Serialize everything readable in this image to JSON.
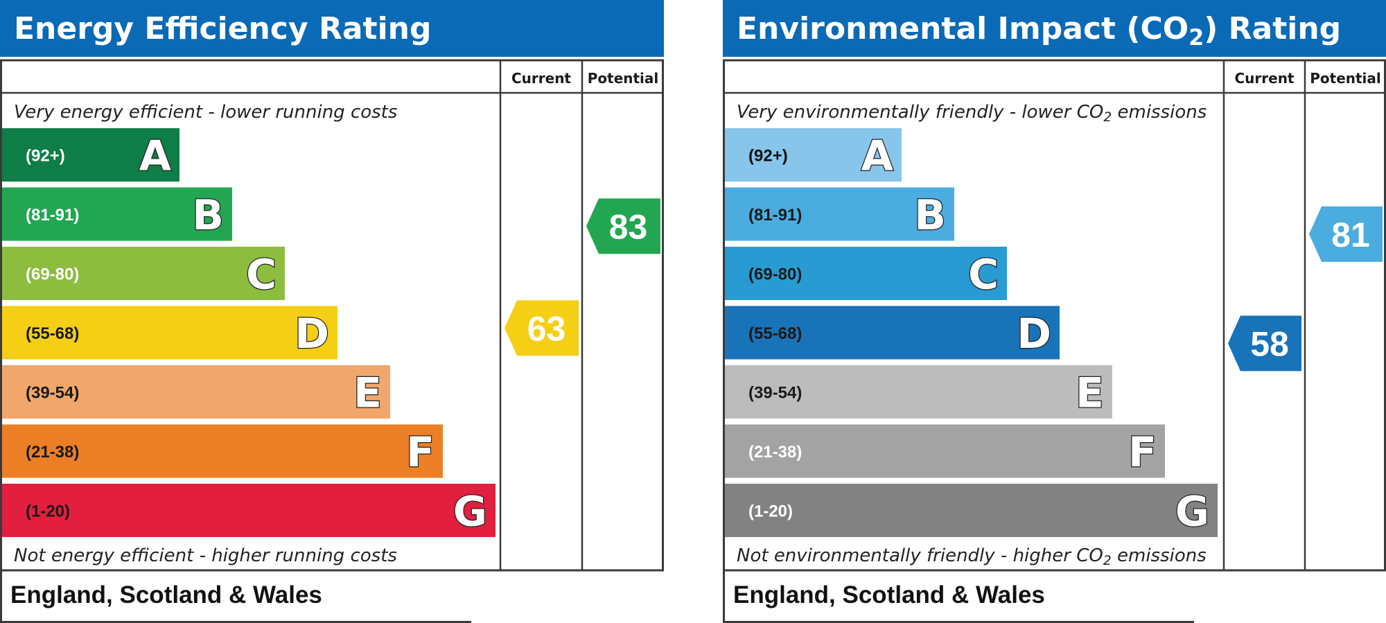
{
  "chart_data": [
    {
      "type": "bar",
      "title": "Energy Efficiency Rating",
      "title_suffix": "",
      "columns": [
        "Current",
        "Potential"
      ],
      "top_note": "Very energy efficient - lower running costs",
      "top_note_suffix": "",
      "bottom_note": "Not energy efficient - higher running costs",
      "bottom_note_suffix": "",
      "footer": "England, Scotland & Wales",
      "bands": [
        {
          "letter": "A",
          "range": "(92+)",
          "min": 92,
          "max": 100,
          "color": "#0f7d47",
          "text_color": "#ffffff"
        },
        {
          "letter": "B",
          "range": "(81-91)",
          "min": 81,
          "max": 91,
          "color": "#22a652",
          "text_color": "#ffffff"
        },
        {
          "letter": "C",
          "range": "(69-80)",
          "min": 69,
          "max": 80,
          "color": "#8dbd3f",
          "text_color": "#ffffff"
        },
        {
          "letter": "D",
          "range": "(55-68)",
          "min": 55,
          "max": 68,
          "color": "#f5cf16",
          "text_color": "#1a1a1a"
        },
        {
          "letter": "E",
          "range": "(39-54)",
          "min": 39,
          "max": 54,
          "color": "#f1a76b",
          "text_color": "#1a1a1a"
        },
        {
          "letter": "F",
          "range": "(21-38)",
          "min": 21,
          "max": 38,
          "color": "#ec7f26",
          "text_color": "#1a1a1a"
        },
        {
          "letter": "G",
          "range": "(1-20)",
          "min": 1,
          "max": 20,
          "color": "#e21f3f",
          "text_color": "#1a1a1a"
        }
      ],
      "current": {
        "value": 63,
        "band": "D",
        "color": "#f5cf16"
      },
      "potential": {
        "value": 83,
        "band": "B",
        "color": "#22a652"
      }
    },
    {
      "type": "bar",
      "title": "Environmental Impact (CO",
      "title_sub": "2",
      "title_suffix": ") Rating",
      "columns": [
        "Current",
        "Potential"
      ],
      "top_note": "Very environmentally friendly - lower CO",
      "top_note_sub": "2",
      "top_note_suffix": " emissions",
      "bottom_note": "Not environmentally friendly - higher CO",
      "bottom_note_sub": "2",
      "bottom_note_suffix": " emissions",
      "footer": "England, Scotland & Wales",
      "bands": [
        {
          "letter": "A",
          "range": "(92+)",
          "min": 92,
          "max": 100,
          "color": "#87c5ea",
          "text_color": "#111111"
        },
        {
          "letter": "B",
          "range": "(81-91)",
          "min": 81,
          "max": 91,
          "color": "#4bacdf",
          "text_color": "#1a1a1a"
        },
        {
          "letter": "C",
          "range": "(69-80)",
          "min": 69,
          "max": 80,
          "color": "#279bd2",
          "text_color": "#1a1a1a"
        },
        {
          "letter": "D",
          "range": "(55-68)",
          "min": 55,
          "max": 68,
          "color": "#1873b9",
          "text_color": "#1a1a1a"
        },
        {
          "letter": "E",
          "range": "(39-54)",
          "min": 39,
          "max": 54,
          "color": "#bcbcbc",
          "text_color": "#1a1a1a"
        },
        {
          "letter": "F",
          "range": "(21-38)",
          "min": 21,
          "max": 38,
          "color": "#a3a3a3",
          "text_color": "#ffffff"
        },
        {
          "letter": "G",
          "range": "(1-20)",
          "min": 1,
          "max": 20,
          "color": "#828282",
          "text_color": "#ffffff"
        }
      ],
      "current": {
        "value": 58,
        "band": "D",
        "color": "#1873b9"
      },
      "potential": {
        "value": 81,
        "band": "B",
        "color": "#4bacdf"
      }
    }
  ]
}
